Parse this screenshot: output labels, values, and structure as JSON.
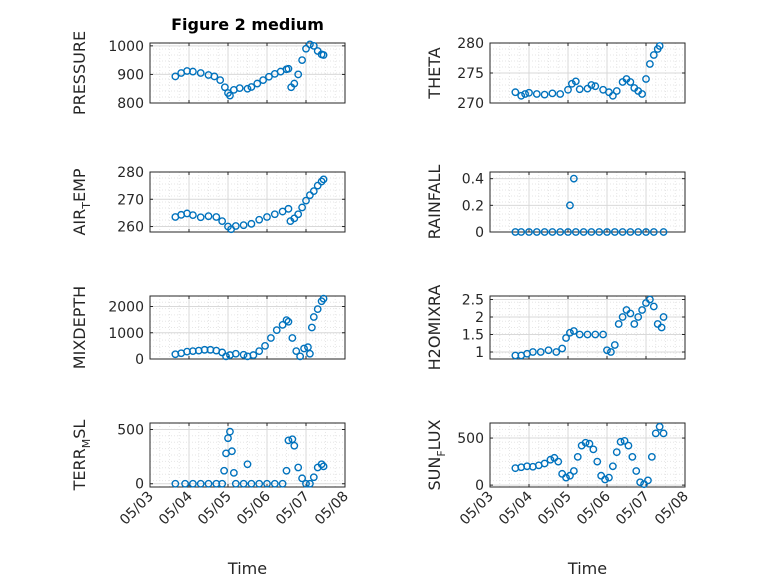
{
  "figure": {
    "title": "Figure 2 medium",
    "marker_color": "#0072BD",
    "x_ticks": [
      "05/03",
      "05/04",
      "05/05",
      "05/06",
      "05/07",
      "05/08"
    ],
    "xlabel": "Time"
  },
  "chart_data": [
    {
      "type": "scatter",
      "ylabel": "PRESSURE",
      "title": "Figure 2 medium",
      "xlim": [
        0,
        5
      ],
      "ylim": [
        800,
        1010
      ],
      "yticks": [
        800,
        900,
        1000
      ],
      "ytick_labels": [
        "800",
        "900",
        "1000"
      ],
      "grid": true,
      "points": [
        [
          0.65,
          893
        ],
        [
          0.8,
          905
        ],
        [
          0.95,
          912
        ],
        [
          1.1,
          910
        ],
        [
          1.3,
          905
        ],
        [
          1.5,
          898
        ],
        [
          1.65,
          893
        ],
        [
          1.8,
          880
        ],
        [
          1.92,
          855
        ],
        [
          2.0,
          835
        ],
        [
          2.05,
          826
        ],
        [
          2.15,
          846
        ],
        [
          2.3,
          852
        ],
        [
          2.5,
          850
        ],
        [
          2.6,
          856
        ],
        [
          2.75,
          868
        ],
        [
          2.9,
          880
        ],
        [
          3.05,
          892
        ],
        [
          3.2,
          902
        ],
        [
          3.35,
          910
        ],
        [
          3.5,
          918
        ],
        [
          3.55,
          920
        ],
        [
          3.62,
          855
        ],
        [
          3.7,
          868
        ],
        [
          3.8,
          900
        ],
        [
          3.9,
          950
        ],
        [
          4.0,
          990
        ],
        [
          4.1,
          1005
        ],
        [
          4.2,
          1000
        ],
        [
          4.3,
          982
        ],
        [
          4.4,
          970
        ],
        [
          4.45,
          968
        ]
      ]
    },
    {
      "type": "scatter",
      "ylabel": "THETA",
      "xlim": [
        0,
        5
      ],
      "ylim": [
        270,
        280
      ],
      "yticks": [
        270,
        275,
        280
      ],
      "ytick_labels": [
        "270",
        "275",
        "280"
      ],
      "grid": true,
      "points": [
        [
          0.65,
          271.8
        ],
        [
          0.8,
          271.2
        ],
        [
          0.9,
          271.5
        ],
        [
          1.0,
          271.7
        ],
        [
          1.2,
          271.5
        ],
        [
          1.4,
          271.4
        ],
        [
          1.6,
          271.6
        ],
        [
          1.8,
          271.5
        ],
        [
          2.0,
          272.2
        ],
        [
          2.1,
          273.2
        ],
        [
          2.2,
          273.6
        ],
        [
          2.3,
          272.3
        ],
        [
          2.5,
          272.4
        ],
        [
          2.6,
          273.0
        ],
        [
          2.7,
          272.8
        ],
        [
          2.9,
          272.2
        ],
        [
          3.05,
          271.8
        ],
        [
          3.15,
          271.2
        ],
        [
          3.25,
          272.0
        ],
        [
          3.4,
          273.5
        ],
        [
          3.5,
          274.0
        ],
        [
          3.6,
          273.5
        ],
        [
          3.7,
          272.5
        ],
        [
          3.8,
          272.0
        ],
        [
          3.9,
          271.5
        ],
        [
          4.0,
          274.0
        ],
        [
          4.1,
          276.5
        ],
        [
          4.2,
          278.0
        ],
        [
          4.3,
          279.0
        ],
        [
          4.35,
          279.5
        ]
      ]
    },
    {
      "type": "scatter",
      "ylabel": "AIR_TEMP",
      "xlim": [
        0,
        5
      ],
      "ylim": [
        258,
        280
      ],
      "yticks": [
        260,
        270,
        280
      ],
      "ytick_labels": [
        "260",
        "270",
        "280"
      ],
      "grid": true,
      "points": [
        [
          0.65,
          263.5
        ],
        [
          0.8,
          264.3
        ],
        [
          0.95,
          264.8
        ],
        [
          1.1,
          264.2
        ],
        [
          1.3,
          263.4
        ],
        [
          1.5,
          263.8
        ],
        [
          1.7,
          263.5
        ],
        [
          1.85,
          262.0
        ],
        [
          2.0,
          260.0
        ],
        [
          2.08,
          259.0
        ],
        [
          2.2,
          260.2
        ],
        [
          2.4,
          260.5
        ],
        [
          2.6,
          261.0
        ],
        [
          2.8,
          262.5
        ],
        [
          3.0,
          263.5
        ],
        [
          3.2,
          264.5
        ],
        [
          3.4,
          265.5
        ],
        [
          3.55,
          266.5
        ],
        [
          3.6,
          262.0
        ],
        [
          3.7,
          263.0
        ],
        [
          3.8,
          264.5
        ],
        [
          3.9,
          267.0
        ],
        [
          4.0,
          269.5
        ],
        [
          4.1,
          271.5
        ],
        [
          4.2,
          273.0
        ],
        [
          4.3,
          275.0
        ],
        [
          4.4,
          276.5
        ],
        [
          4.45,
          277.3
        ]
      ]
    },
    {
      "type": "scatter",
      "ylabel": "RAINFALL",
      "xlim": [
        0,
        5
      ],
      "ylim": [
        0,
        0.45
      ],
      "yticks": [
        0,
        0.2,
        0.4
      ],
      "ytick_labels": [
        "0",
        "0.2",
        "0.4"
      ],
      "grid": true,
      "points": [
        [
          0.65,
          0
        ],
        [
          0.8,
          0
        ],
        [
          1.0,
          0
        ],
        [
          1.2,
          0
        ],
        [
          1.4,
          0
        ],
        [
          1.6,
          0
        ],
        [
          1.8,
          0
        ],
        [
          2.0,
          0
        ],
        [
          2.05,
          0.2
        ],
        [
          2.15,
          0.4
        ],
        [
          2.2,
          0
        ],
        [
          2.4,
          0
        ],
        [
          2.6,
          0
        ],
        [
          2.8,
          0
        ],
        [
          3.0,
          0
        ],
        [
          3.2,
          0
        ],
        [
          3.4,
          0
        ],
        [
          3.6,
          0
        ],
        [
          3.8,
          0
        ],
        [
          4.0,
          0
        ],
        [
          4.2,
          0
        ],
        [
          4.45,
          0
        ]
      ]
    },
    {
      "type": "scatter",
      "ylabel": "MIXDEPTH",
      "xlim": [
        0,
        5
      ],
      "ylim": [
        0,
        2400
      ],
      "yticks": [
        0,
        1000,
        2000
      ],
      "ytick_labels": [
        "0",
        "1000",
        "2000"
      ],
      "grid": true,
      "points": [
        [
          0.65,
          180
        ],
        [
          0.8,
          220
        ],
        [
          0.95,
          280
        ],
        [
          1.1,
          300
        ],
        [
          1.25,
          320
        ],
        [
          1.4,
          350
        ],
        [
          1.55,
          350
        ],
        [
          1.7,
          320
        ],
        [
          1.85,
          250
        ],
        [
          1.95,
          100
        ],
        [
          2.05,
          150
        ],
        [
          2.2,
          200
        ],
        [
          2.4,
          160
        ],
        [
          2.5,
          100
        ],
        [
          2.65,
          150
        ],
        [
          2.8,
          300
        ],
        [
          2.95,
          500
        ],
        [
          3.1,
          800
        ],
        [
          3.25,
          1100
        ],
        [
          3.4,
          1300
        ],
        [
          3.5,
          1480
        ],
        [
          3.55,
          1420
        ],
        [
          3.65,
          800
        ],
        [
          3.75,
          300
        ],
        [
          3.85,
          100
        ],
        [
          3.95,
          400
        ],
        [
          4.05,
          450
        ],
        [
          4.1,
          200
        ],
        [
          4.15,
          1200
        ],
        [
          4.2,
          1600
        ],
        [
          4.3,
          1900
        ],
        [
          4.4,
          2200
        ],
        [
          4.45,
          2300
        ]
      ]
    },
    {
      "type": "scatter",
      "ylabel": "H2OMIXRA",
      "xlim": [
        0,
        5
      ],
      "ylim": [
        0.8,
        2.6
      ],
      "yticks": [
        1,
        1.5,
        2,
        2.5
      ],
      "ytick_labels": [
        "1",
        "1.5",
        "2",
        "2.5"
      ],
      "grid": true,
      "points": [
        [
          0.65,
          0.9
        ],
        [
          0.8,
          0.9
        ],
        [
          0.95,
          0.95
        ],
        [
          1.1,
          1.0
        ],
        [
          1.3,
          1.0
        ],
        [
          1.5,
          1.05
        ],
        [
          1.7,
          1.0
        ],
        [
          1.85,
          1.1
        ],
        [
          1.95,
          1.4
        ],
        [
          2.05,
          1.55
        ],
        [
          2.15,
          1.6
        ],
        [
          2.3,
          1.5
        ],
        [
          2.5,
          1.5
        ],
        [
          2.7,
          1.5
        ],
        [
          2.9,
          1.5
        ],
        [
          3.0,
          1.05
        ],
        [
          3.1,
          1.0
        ],
        [
          3.2,
          1.2
        ],
        [
          3.3,
          1.8
        ],
        [
          3.4,
          2.0
        ],
        [
          3.5,
          2.2
        ],
        [
          3.6,
          2.1
        ],
        [
          3.7,
          1.8
        ],
        [
          3.8,
          2.0
        ],
        [
          3.9,
          2.2
        ],
        [
          4.0,
          2.4
        ],
        [
          4.1,
          2.5
        ],
        [
          4.2,
          2.3
        ],
        [
          4.3,
          1.8
        ],
        [
          4.4,
          1.7
        ],
        [
          4.45,
          2.0
        ]
      ]
    },
    {
      "type": "scatter",
      "ylabel": "TERR_MSL",
      "xlim": [
        0,
        5
      ],
      "ylim": [
        -30,
        560
      ],
      "yticks": [
        0,
        500
      ],
      "ytick_labels": [
        "0",
        "500"
      ],
      "grid": true,
      "points": [
        [
          0.65,
          0
        ],
        [
          0.9,
          0
        ],
        [
          1.1,
          0
        ],
        [
          1.3,
          0
        ],
        [
          1.5,
          0
        ],
        [
          1.7,
          0
        ],
        [
          1.85,
          0
        ],
        [
          1.9,
          120
        ],
        [
          1.95,
          280
        ],
        [
          2.0,
          420
        ],
        [
          2.05,
          480
        ],
        [
          2.1,
          300
        ],
        [
          2.15,
          100
        ],
        [
          2.2,
          0
        ],
        [
          2.4,
          0
        ],
        [
          2.5,
          180
        ],
        [
          2.6,
          0
        ],
        [
          2.8,
          0
        ],
        [
          3.0,
          0
        ],
        [
          3.2,
          0
        ],
        [
          3.4,
          0
        ],
        [
          3.5,
          120
        ],
        [
          3.55,
          400
        ],
        [
          3.65,
          410
        ],
        [
          3.7,
          350
        ],
        [
          3.8,
          150
        ],
        [
          3.9,
          50
        ],
        [
          4.0,
          0
        ],
        [
          4.1,
          0
        ],
        [
          4.2,
          60
        ],
        [
          4.3,
          150
        ],
        [
          4.4,
          180
        ],
        [
          4.45,
          160
        ]
      ]
    },
    {
      "type": "scatter",
      "ylabel": "SUN_FLUX",
      "xlim": [
        0,
        5
      ],
      "ylim": [
        -20,
        660
      ],
      "yticks": [
        0,
        500
      ],
      "ytick_labels": [
        "0",
        "500"
      ],
      "grid": true,
      "points": [
        [
          0.65,
          180
        ],
        [
          0.8,
          190
        ],
        [
          0.95,
          200
        ],
        [
          1.1,
          195
        ],
        [
          1.25,
          210
        ],
        [
          1.4,
          230
        ],
        [
          1.55,
          270
        ],
        [
          1.65,
          290
        ],
        [
          1.75,
          250
        ],
        [
          1.85,
          120
        ],
        [
          1.95,
          80
        ],
        [
          2.05,
          100
        ],
        [
          2.15,
          150
        ],
        [
          2.25,
          300
        ],
        [
          2.35,
          420
        ],
        [
          2.45,
          450
        ],
        [
          2.55,
          440
        ],
        [
          2.65,
          380
        ],
        [
          2.75,
          250
        ],
        [
          2.85,
          100
        ],
        [
          2.95,
          60
        ],
        [
          3.05,
          80
        ],
        [
          3.15,
          200
        ],
        [
          3.25,
          350
        ],
        [
          3.35,
          460
        ],
        [
          3.45,
          470
        ],
        [
          3.55,
          420
        ],
        [
          3.65,
          300
        ],
        [
          3.75,
          150
        ],
        [
          3.85,
          30
        ],
        [
          3.95,
          10
        ],
        [
          4.05,
          50
        ],
        [
          4.15,
          300
        ],
        [
          4.25,
          550
        ],
        [
          4.35,
          620
        ],
        [
          4.45,
          550
        ]
      ]
    }
  ]
}
